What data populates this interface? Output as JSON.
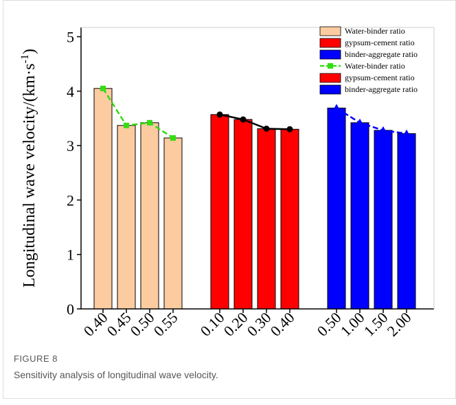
{
  "chart_data": {
    "type": "bar_line",
    "y_label": {
      "text": "Longitudinal wave velocity/(km·s",
      "superscript": "-1",
      "suffix": ")"
    },
    "categories": [
      "0.40",
      "0.45",
      "0.50",
      "0.55",
      null,
      "0.10",
      "0.20",
      "0.30",
      "0.40",
      null,
      "0.50",
      "1.00",
      "1.50",
      "2.00"
    ],
    "ylim": [
      0,
      5.17
    ],
    "yticks": [
      0,
      1,
      2,
      3,
      4,
      5
    ],
    "legend": "upper right",
    "series": [
      {
        "name": "Water-binder ratio",
        "type": "bar",
        "color": "#fccba0",
        "values": [
          4.05,
          3.37,
          3.42,
          3.14,
          null,
          null,
          null,
          null,
          null,
          null,
          null,
          null,
          null,
          null
        ]
      },
      {
        "name": "gypsum-cement ratio",
        "type": "bar",
        "color": "#ff0000",
        "values": [
          null,
          null,
          null,
          null,
          null,
          3.57,
          3.48,
          3.31,
          3.3,
          null,
          null,
          null,
          null,
          null
        ]
      },
      {
        "name": "binder-aggregate ratio",
        "type": "bar",
        "color": "#0000ff",
        "values": [
          null,
          null,
          null,
          null,
          null,
          null,
          null,
          null,
          null,
          null,
          3.69,
          3.42,
          3.28,
          3.22
        ]
      },
      {
        "name": "Water-binder ratio",
        "type": "line",
        "color": "#33dd11",
        "marker": "square",
        "dash": true,
        "legend_symbol": "line",
        "values": [
          4.05,
          3.37,
          3.42,
          3.14,
          null,
          null,
          null,
          null,
          null,
          null,
          null,
          null,
          null,
          null
        ]
      },
      {
        "name": "gypsum-cement ratio",
        "type": "line",
        "color": "#000000",
        "marker": "circle",
        "dash": false,
        "legend_symbol": "box",
        "legend_color": "#ff0000",
        "values": [
          null,
          null,
          null,
          null,
          null,
          3.57,
          3.48,
          3.31,
          3.3,
          null,
          null,
          null,
          null,
          null
        ]
      },
      {
        "name": "binder-aggregate ratio",
        "type": "line",
        "color": "#0000ff",
        "marker": "triangle",
        "dash": true,
        "legend_symbol": "box",
        "legend_color": "#0000ff",
        "values": [
          null,
          null,
          null,
          null,
          null,
          null,
          null,
          null,
          null,
          null,
          3.69,
          3.42,
          3.28,
          3.22
        ]
      }
    ]
  },
  "caption": {
    "label": "FIGURE 8",
    "text": "Sensitivity analysis of longitudinal wave velocity."
  }
}
